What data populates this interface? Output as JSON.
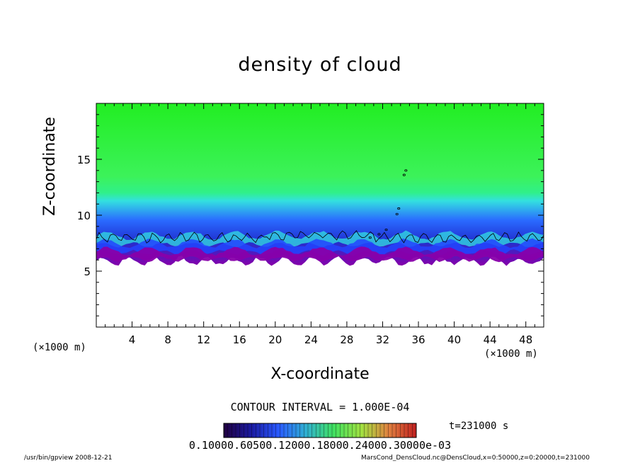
{
  "chart_data": {
    "type": "heatmap",
    "title": "density of cloud",
    "xlabel": "X-coordinate",
    "ylabel": "Z-coordinate",
    "x_unit": "(×1000 m)",
    "y_unit": "(×1000 m)",
    "xlim": [
      0,
      50
    ],
    "ylim": [
      0,
      20
    ],
    "x_ticks": [
      "4",
      "8",
      "12",
      "16",
      "20",
      "24",
      "28",
      "32",
      "36",
      "40",
      "44",
      "48"
    ],
    "y_ticks": [
      "5",
      "10",
      "15"
    ],
    "field": {
      "cloud_base_km": 6.0,
      "cloud_top_km": 20.0,
      "contour_level_km_approx": 8.0,
      "colors": {
        "upper": "#22ee22",
        "mid": "#33ff66",
        "cyan": "#33e0e0",
        "blue": "#2244ff",
        "purple": "#8800aa"
      }
    },
    "contour_interval": "CONTOUR INTERVAL = 1.000E-04",
    "time_label": "t=231000 s",
    "colorbar_ticks": "0.10000.60500.12000.18000.24000.30000e-03",
    "colorbar_colors": [
      "#200040",
      "#1a1aa0",
      "#2a5aff",
      "#30b0d0",
      "#40e060",
      "#a0e040",
      "#e08040",
      "#c02020"
    ]
  },
  "footer": {
    "left": "/usr/bin/gpview   2008-12-21",
    "right": "MarsCond_DensCloud.nc@DensCloud,x=0:50000,z=0:20000,t=231000"
  }
}
